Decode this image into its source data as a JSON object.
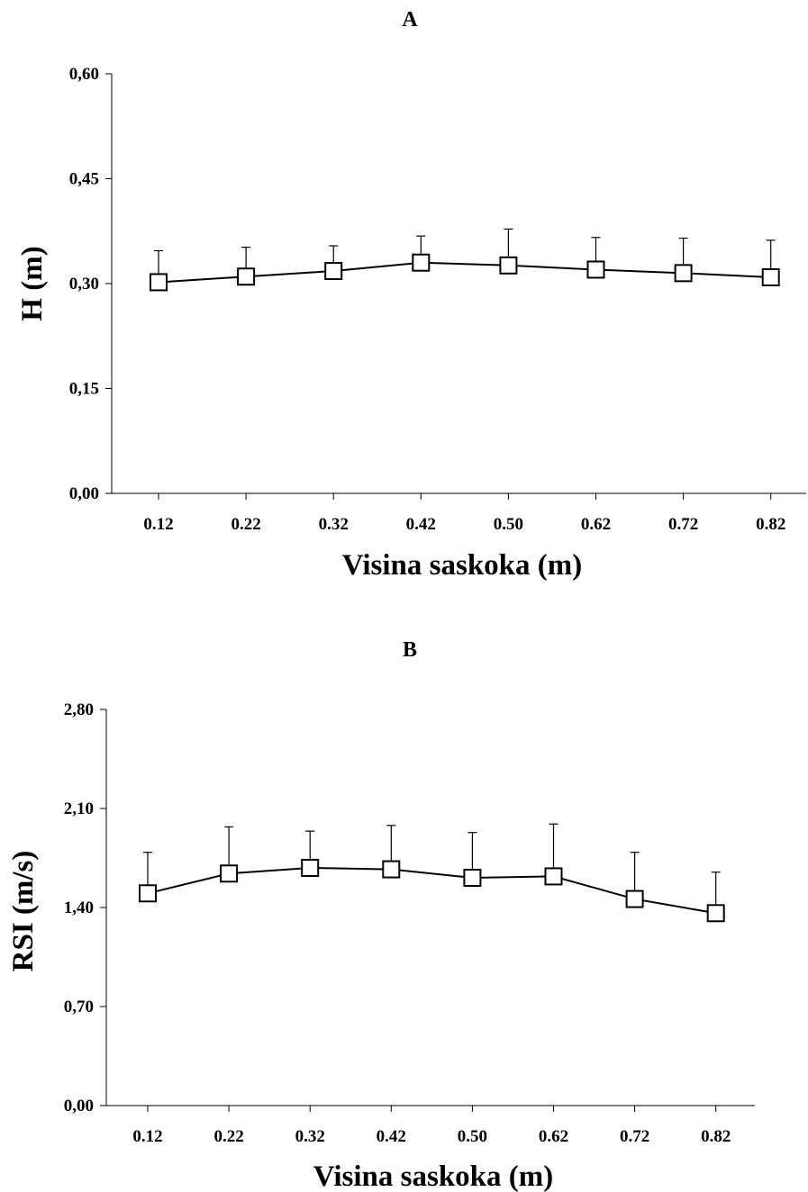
{
  "chart_data": [
    {
      "panel": "A",
      "type": "line",
      "title": "A",
      "xlabel": "Visina saskoka (m)",
      "ylabel": "H (m)",
      "categories": [
        "0.12",
        "0.22",
        "0.32",
        "0.42",
        "0.50",
        "0.62",
        "0.72",
        "0.82"
      ],
      "y_ticks": [
        "0,00",
        "0,15",
        "0,30",
        "0,45",
        "0,60"
      ],
      "ylim": [
        0,
        0.6
      ],
      "series": [
        {
          "values": [
            0.302,
            0.31,
            0.318,
            0.33,
            0.326,
            0.32,
            0.315,
            0.309
          ],
          "error_upper": [
            0.045,
            0.042,
            0.036,
            0.038,
            0.052,
            0.046,
            0.05,
            0.053
          ],
          "marker": "open-square"
        }
      ],
      "grid": false
    },
    {
      "panel": "B",
      "type": "line",
      "title": "B",
      "xlabel": "Visina saskoka (m)",
      "ylabel": "RSI (m/s)",
      "categories": [
        "0.12",
        "0.22",
        "0.32",
        "0.42",
        "0.50",
        "0.62",
        "0.72",
        "0.82"
      ],
      "y_ticks": [
        "0,00",
        "0,70",
        "1,40",
        "2,10",
        "2,80"
      ],
      "ylim": [
        0,
        2.8
      ],
      "series": [
        {
          "values": [
            1.5,
            1.64,
            1.68,
            1.67,
            1.61,
            1.62,
            1.46,
            1.36
          ],
          "error_upper": [
            0.29,
            0.33,
            0.26,
            0.31,
            0.32,
            0.37,
            0.33,
            0.29
          ],
          "marker": "open-square"
        }
      ],
      "grid": false
    }
  ]
}
